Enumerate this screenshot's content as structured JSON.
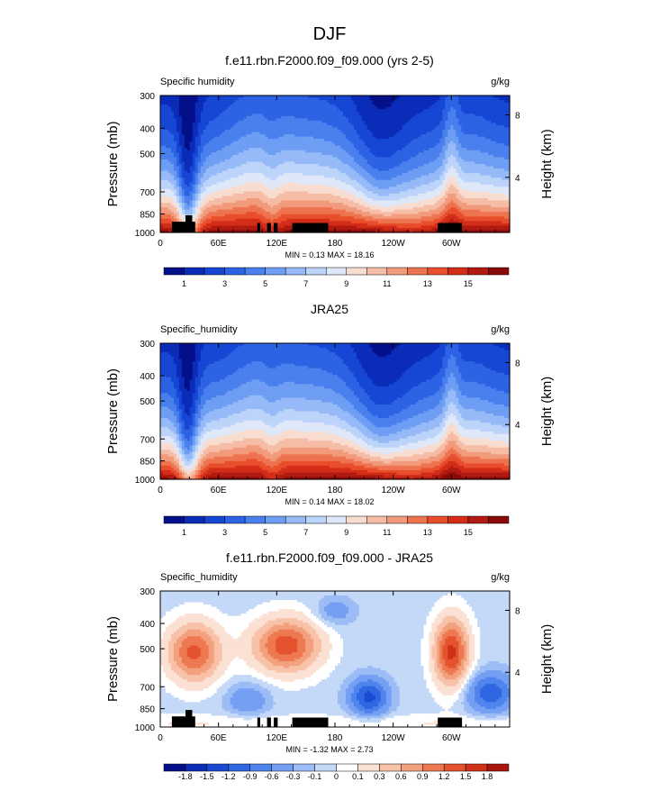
{
  "page": {
    "title": "DJF"
  },
  "chart_data": [
    {
      "type": "heatmap",
      "title": "f.e11.rbn.F2000.f09_f09.000 (yrs 2-5)",
      "left_label": "Specific humidity",
      "units": "g/kg",
      "ylabel": "Pressure (mb)",
      "ylabel_right": "Height (km)",
      "x_ticks": [
        "0",
        "60E",
        "120E",
        "180",
        "120W",
        "60W"
      ],
      "y_ticks": [
        "300",
        "400",
        "500",
        "700",
        "850",
        "1000"
      ],
      "y_ticks_right": [
        "8",
        "4"
      ],
      "stats": "MIN =  0.13  MAX =  18.16",
      "colorbar_labels": [
        "1",
        "3",
        "5",
        "7",
        "9",
        "11",
        "13",
        "15"
      ],
      "colorbar_colors": [
        "#04108a",
        "#0a2cb8",
        "#1646d4",
        "#2c62e4",
        "#4a80ee",
        "#6e9ef4",
        "#96baf7",
        "#bcd4f9",
        "#dfe8f8",
        "#f8dcd0",
        "#f6bda6",
        "#f29a7c",
        "#ee7350",
        "#e84e2c",
        "#d32d18",
        "#b01a10",
        "#8a0a08"
      ],
      "has_topography": true
    },
    {
      "type": "heatmap",
      "title": "JRA25",
      "left_label": "Specific_humidity",
      "units": "g/kg",
      "ylabel": "Pressure (mb)",
      "ylabel_right": "Height (km)",
      "x_ticks": [
        "0",
        "60E",
        "120E",
        "180",
        "120W",
        "60W"
      ],
      "y_ticks": [
        "300",
        "400",
        "500",
        "700",
        "850",
        "1000"
      ],
      "y_ticks_right": [
        "8",
        "4"
      ],
      "stats": "MIN =  0.14  MAX =  18.02",
      "colorbar_labels": [
        "1",
        "3",
        "5",
        "7",
        "9",
        "11",
        "13",
        "15"
      ],
      "colorbar_colors": [
        "#04108a",
        "#0a2cb8",
        "#1646d4",
        "#2c62e4",
        "#4a80ee",
        "#6e9ef4",
        "#96baf7",
        "#bcd4f9",
        "#dfe8f8",
        "#f8dcd0",
        "#f6bda6",
        "#f29a7c",
        "#ee7350",
        "#e84e2c",
        "#d32d18",
        "#b01a10",
        "#8a0a08"
      ],
      "has_topography": false
    },
    {
      "type": "heatmap",
      "title": "f.e11.rbn.F2000.f09_f09.000 - JRA25",
      "left_label": "Specific_humidity",
      "units": "g/kg",
      "ylabel": "Pressure (mb)",
      "ylabel_right": "Height (km)",
      "x_ticks": [
        "0",
        "60E",
        "120E",
        "180",
        "120W",
        "60W"
      ],
      "y_ticks": [
        "300",
        "400",
        "500",
        "700",
        "850",
        "1000"
      ],
      "y_ticks_right": [
        "8",
        "4"
      ],
      "stats": "MIN = -1.32  MAX =  2.73",
      "colorbar_labels": [
        "-1.8",
        "-1.5",
        "-1.2",
        "-0.9",
        "-0.6",
        "-0.3",
        "-0.1",
        "0",
        "0.1",
        "0.3",
        "0.6",
        "0.9",
        "1.2",
        "1.5",
        "1.8"
      ],
      "colorbar_colors": [
        "#04108a",
        "#0c2eb6",
        "#1a4ad2",
        "#2f66e2",
        "#4e84ec",
        "#749ff2",
        "#9cbcf6",
        "#c4d8f8",
        "#ffffff",
        "#fbe0d4",
        "#f8c2a8",
        "#f3a07e",
        "#ee7850",
        "#e5522e",
        "#cf3018",
        "#a8160c"
      ],
      "has_topography": true
    }
  ]
}
